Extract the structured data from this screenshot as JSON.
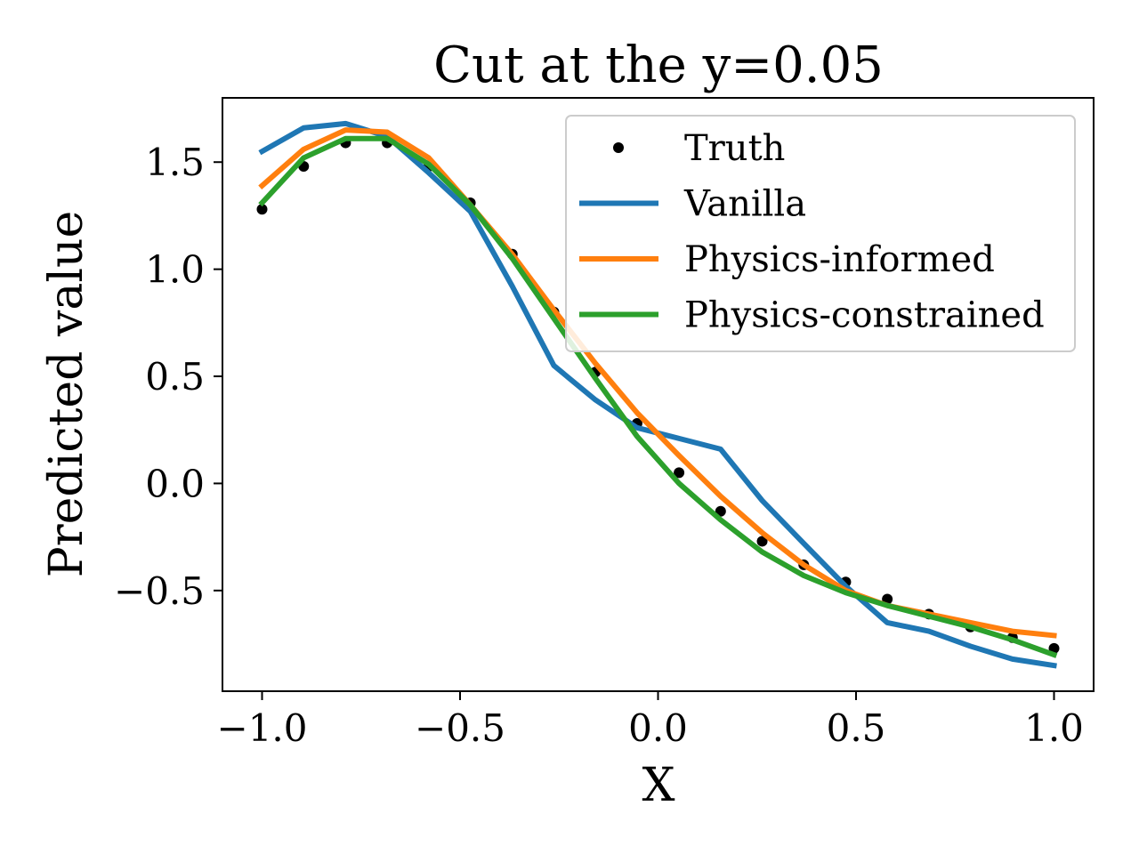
{
  "chart_data": {
    "type": "line",
    "title": "Cut at the y=0.05",
    "xlabel": "X",
    "ylabel": "Predicted value",
    "xlim": [
      -1.1,
      1.1
    ],
    "ylim": [
      -0.97,
      1.8
    ],
    "xticks": [
      -1.0,
      -0.5,
      0.0,
      0.5,
      1.0
    ],
    "xtick_labels": [
      "−1.0",
      "−0.5",
      "0.0",
      "0.5",
      "1.0"
    ],
    "yticks": [
      -0.5,
      0.0,
      0.5,
      1.0,
      1.5
    ],
    "ytick_labels": [
      "−0.5",
      "0.0",
      "0.5",
      "1.0",
      "1.5"
    ],
    "grid": false,
    "legend_position": "top-right",
    "x": [
      -1.0,
      -0.895,
      -0.789,
      -0.684,
      -0.579,
      -0.474,
      -0.368,
      -0.263,
      -0.158,
      -0.053,
      0.053,
      0.158,
      0.263,
      0.368,
      0.474,
      0.579,
      0.684,
      0.789,
      0.895,
      1.0
    ],
    "series": [
      {
        "name": "Truth",
        "style": "points",
        "color": "#000000",
        "values": [
          1.28,
          1.48,
          1.59,
          1.59,
          1.48,
          1.31,
          1.07,
          0.8,
          0.52,
          0.28,
          0.05,
          -0.13,
          -0.27,
          -0.38,
          -0.46,
          -0.54,
          -0.61,
          -0.67,
          -0.72,
          -0.77
        ]
      },
      {
        "name": "Vanilla",
        "style": "line",
        "color": "#1f77b4",
        "values": [
          1.55,
          1.66,
          1.68,
          1.62,
          1.45,
          1.27,
          0.92,
          0.55,
          0.39,
          0.26,
          0.21,
          0.16,
          -0.08,
          -0.28,
          -0.48,
          -0.65,
          -0.69,
          -0.76,
          -0.82,
          -0.85
        ]
      },
      {
        "name": "Physics-informed",
        "style": "line",
        "color": "#ff7f0e",
        "values": [
          1.39,
          1.56,
          1.65,
          1.64,
          1.52,
          1.3,
          1.07,
          0.81,
          0.56,
          0.33,
          0.13,
          -0.06,
          -0.23,
          -0.38,
          -0.5,
          -0.57,
          -0.61,
          -0.65,
          -0.69,
          -0.71
        ]
      },
      {
        "name": "Physics-constrained",
        "style": "line",
        "color": "#2ca02c",
        "values": [
          1.31,
          1.52,
          1.61,
          1.61,
          1.49,
          1.3,
          1.05,
          0.77,
          0.49,
          0.22,
          0.0,
          -0.17,
          -0.32,
          -0.43,
          -0.51,
          -0.57,
          -0.62,
          -0.67,
          -0.73,
          -0.8
        ]
      }
    ]
  }
}
